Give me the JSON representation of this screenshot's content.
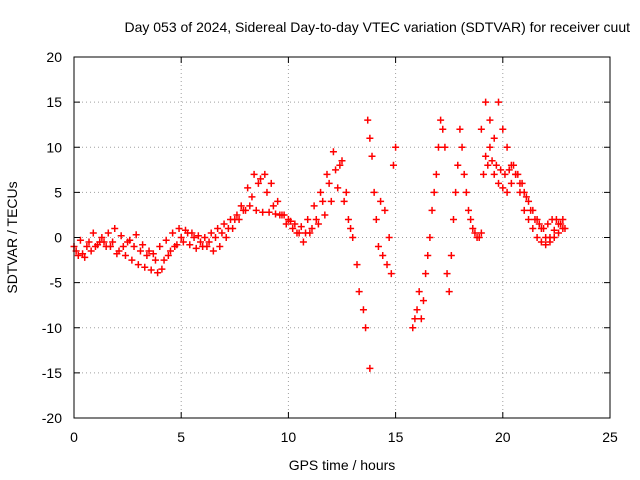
{
  "chart_data": {
    "type": "scatter",
    "title": "Day 053 of 2024, Sidereal Day-to-day VTEC variation (SDTVAR) for receiver cuut",
    "xlabel": "GPS time / hours",
    "ylabel": "SDTVAR / TECUs",
    "xlim": [
      0,
      25
    ],
    "ylim": [
      -20,
      20
    ],
    "xticks": [
      0,
      5,
      10,
      15,
      20,
      25
    ],
    "yticks": [
      -20,
      -15,
      -10,
      -5,
      0,
      5,
      10,
      15,
      20
    ],
    "grid": true,
    "marker": "+",
    "color": "#ff0000",
    "series": [
      {
        "name": "s1",
        "x": [
          0.0,
          0.3,
          0.6,
          0.9,
          1.2,
          1.5,
          1.8,
          2.1,
          2.4,
          2.7,
          3.0,
          3.3,
          3.6,
          3.9,
          4.2,
          4.5,
          4.8,
          5.1,
          5.4,
          5.7,
          6.0,
          6.3,
          6.6,
          6.9,
          7.2,
          7.5,
          7.8,
          8.1,
          8.4,
          8.7,
          9.0,
          9.3,
          9.6,
          9.9,
          10.2,
          10.5,
          10.8,
          11.1,
          11.4,
          11.7,
          12.0,
          12.3,
          12.6,
          12.9,
          13.2,
          13.5,
          13.8
        ],
        "y": [
          -1.0,
          -0.3,
          -1.0,
          0.5,
          -0.5,
          -1.0,
          -0.5,
          -1.5,
          -2.0,
          -2.5,
          -3.0,
          -3.3,
          -3.6,
          -3.9,
          -2.5,
          -1.5,
          -0.8,
          -0.5,
          -0.8,
          -1.2,
          -1.0,
          -0.5,
          0.0,
          0.5,
          1.0,
          2.0,
          3.5,
          5.5,
          7.0,
          6.5,
          5.0,
          3.5,
          2.5,
          1.5,
          1.0,
          0.5,
          0.5,
          1.0,
          1.5,
          2.5,
          4.0,
          5.5,
          4.0,
          1.0,
          -3.0,
          -8.0,
          -14.5
        ]
      },
      {
        "name": "s2",
        "x": [
          0.1,
          0.4,
          0.7,
          1.0,
          1.3,
          1.6,
          1.9,
          2.2,
          2.5,
          2.8,
          3.1,
          3.4,
          3.7,
          4.0,
          4.3,
          4.6,
          4.9,
          5.2,
          5.5,
          5.8,
          6.1,
          6.4,
          6.7,
          7.0,
          7.3,
          7.6,
          7.9,
          8.2,
          8.5,
          8.8,
          9.1,
          9.4,
          9.7,
          10.0,
          10.3,
          10.6,
          10.9,
          11.2,
          11.5,
          11.8,
          12.1,
          12.4,
          12.7,
          13.0,
          13.3,
          13.6
        ],
        "y": [
          -1.5,
          -1.8,
          -0.5,
          -1.0,
          0.0,
          0.5,
          1.0,
          0.2,
          -0.5,
          -1.0,
          -1.5,
          -2.0,
          -1.8,
          -1.0,
          -0.3,
          0.5,
          1.0,
          0.8,
          0.5,
          0.2,
          0.0,
          0.5,
          1.0,
          1.5,
          2.0,
          2.5,
          3.0,
          3.5,
          3.0,
          2.8,
          2.8,
          2.6,
          2.5,
          2.0,
          1.5,
          1.2,
          2.0,
          3.5,
          5.0,
          7.0,
          9.5,
          8.0,
          5.0,
          0.0,
          -6.0,
          -10.0
        ]
      },
      {
        "name": "s3",
        "x": [
          0.2,
          0.5,
          0.8,
          1.1,
          1.4,
          1.7,
          2.0,
          2.3,
          2.6,
          2.9,
          3.2,
          3.5,
          3.8,
          4.1,
          4.4,
          4.7,
          5.0,
          5.3,
          5.6,
          5.9,
          6.2,
          6.5,
          6.8,
          7.1,
          7.4,
          7.7,
          8.0,
          8.3,
          8.6,
          8.9,
          9.2,
          9.5,
          9.8,
          10.1,
          10.4,
          10.7,
          11.0,
          11.3,
          11.6,
          11.9,
          12.2,
          12.5,
          12.8
        ],
        "y": [
          -2.0,
          -2.2,
          -1.5,
          -0.8,
          -0.5,
          -1.0,
          -1.8,
          -1.0,
          -0.3,
          0.3,
          -0.8,
          -1.5,
          -2.5,
          -3.5,
          -2.0,
          -1.0,
          0.0,
          0.5,
          0.0,
          -0.5,
          -1.0,
          -1.5,
          -1.0,
          0.0,
          1.0,
          2.0,
          3.0,
          4.5,
          6.0,
          7.0,
          6.0,
          4.0,
          2.5,
          1.8,
          0.5,
          -0.5,
          0.5,
          2.0,
          4.0,
          6.0,
          7.5,
          8.5,
          2.0
        ]
      },
      {
        "name": "s4",
        "x": [
          13.7,
          13.8,
          13.9,
          14.0,
          14.1,
          14.2,
          14.3,
          14.4,
          14.5,
          14.6,
          14.7,
          14.8,
          14.9,
          15.0
        ],
        "y": [
          13.0,
          11.0,
          9.0,
          5.0,
          2.0,
          -1.0,
          4.0,
          -2.0,
          3.0,
          -3.0,
          0.0,
          -4.0,
          8.0,
          10.0
        ]
      },
      {
        "name": "s5",
        "x": [
          15.8,
          15.9,
          16.0,
          16.1,
          16.2,
          16.3,
          16.4,
          16.5,
          16.6,
          16.7,
          16.8,
          16.9,
          17.0,
          17.1,
          17.2,
          17.3,
          17.4,
          17.5,
          17.6,
          17.7,
          17.8,
          17.9,
          18.0,
          18.1,
          18.2,
          18.3,
          18.4,
          18.5,
          18.6,
          18.7,
          18.8,
          18.9,
          19.0
        ],
        "y": [
          -10.0,
          -9.0,
          -8.0,
          -6.0,
          -9.0,
          -7.0,
          -4.0,
          -2.0,
          0.0,
          3.0,
          5.0,
          7.0,
          10.0,
          13.0,
          12.0,
          10.0,
          -4.0,
          -6.0,
          -2.0,
          2.0,
          5.0,
          8.0,
          12.0,
          10.0,
          7.0,
          5.0,
          3.0,
          2.0,
          1.0,
          0.5,
          0.0,
          0.0,
          0.5
        ]
      },
      {
        "name": "s6",
        "x": [
          19.0,
          19.2,
          19.4,
          19.6,
          19.8,
          20.0,
          20.2,
          20.4,
          20.6,
          20.8,
          21.0,
          21.2,
          21.4,
          21.6,
          21.8,
          22.0,
          22.2,
          22.4,
          22.6,
          22.8
        ],
        "y": [
          12.0,
          15.0,
          13.0,
          11.0,
          15.0,
          12.0,
          10.0,
          8.0,
          7.0,
          6.0,
          5.0,
          4.0,
          3.0,
          2.0,
          1.0,
          0.0,
          -0.5,
          0.0,
          0.5,
          1.0
        ]
      },
      {
        "name": "s7",
        "x": [
          19.1,
          19.3,
          19.5,
          19.7,
          19.9,
          20.1,
          20.3,
          20.5,
          20.7,
          20.9,
          21.1,
          21.3,
          21.5,
          21.7,
          21.9,
          22.1,
          22.3,
          22.5,
          22.7,
          22.9
        ],
        "y": [
          7.0,
          8.0,
          8.5,
          8.0,
          7.5,
          7.0,
          7.5,
          8.0,
          7.0,
          6.0,
          4.5,
          3.0,
          2.0,
          1.5,
          1.0,
          1.5,
          2.0,
          2.0,
          1.5,
          1.0
        ]
      },
      {
        "name": "s8",
        "x": [
          19.2,
          19.4,
          19.6,
          19.8,
          20.0,
          20.2,
          20.4,
          20.6,
          20.8,
          21.0,
          21.2,
          21.4,
          21.6,
          21.8,
          22.0,
          22.2,
          22.4,
          22.6,
          22.8
        ],
        "y": [
          9.0,
          10.0,
          7.0,
          6.0,
          5.5,
          5.0,
          6.0,
          7.0,
          5.0,
          3.0,
          2.0,
          1.0,
          0.0,
          -0.5,
          -0.8,
          0.0,
          0.8,
          1.5,
          2.0
        ]
      }
    ]
  }
}
